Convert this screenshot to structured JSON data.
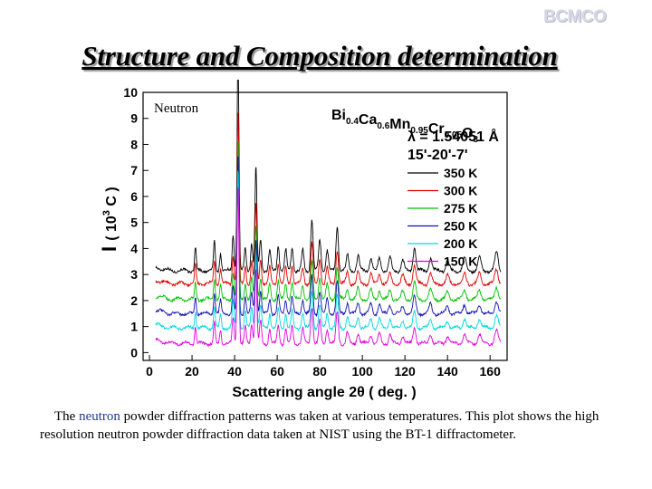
{
  "slide": {
    "logo": "BCMCO",
    "title": "Structure and Composition determination",
    "caption": {
      "part1": "The ",
      "highlight": "neutron",
      "part2": " powder diffraction patterns was taken at various temperatures. This plot shows the high resolution neutron powder diffraction data taken at NIST using the BT-1 diffractometer."
    }
  },
  "chart_data": {
    "type": "line",
    "title": "",
    "panel_label": "Neutron",
    "xlabel": "Scattering angle 2θ ( deg. )",
    "ylabel": "I",
    "ylabel_parts": [
      "I",
      "( 10",
      "3",
      " C )"
    ],
    "xlim": [
      -3,
      168
    ],
    "ylim": [
      -0.3,
      10
    ],
    "xticks": [
      0,
      20,
      40,
      60,
      80,
      100,
      120,
      140,
      160
    ],
    "yticks": [
      0,
      1,
      2,
      3,
      4,
      5,
      6,
      7,
      8,
      9,
      10
    ],
    "compound": {
      "parts": [
        {
          "t": "Bi",
          "sub": "0.4"
        },
        {
          "t": "Ca",
          "sub": "0.6"
        },
        {
          "t": "Mn",
          "sub": "0.95"
        },
        {
          "t": "Cr",
          "sub": "0.05"
        },
        {
          "t": "O",
          "sub": "3"
        }
      ]
    },
    "wavelength": "λ = 1.54051 Å",
    "collimation": "15'-20'-7'",
    "x_start": 3,
    "x_end": 165,
    "series": [
      {
        "name": "350 K",
        "color": "#000000",
        "offset": 2.8
      },
      {
        "name": "300 K",
        "color": "#e00000",
        "offset": 2.3
      },
      {
        "name": "275 K",
        "color": "#00c000",
        "offset": 1.7
      },
      {
        "name": "250 K",
        "color": "#1010b0",
        "offset": 1.15
      },
      {
        "name": "200 K",
        "color": "#00d8e0",
        "offset": 0.6
      },
      {
        "name": "150 K",
        "color": "#e000e0",
        "offset": 0.0
      }
    ],
    "peaks": [
      {
        "x": 21.6,
        "h": 0.9
      },
      {
        "x": 30.5,
        "h": 1.1
      },
      {
        "x": 33.4,
        "h": 0.7
      },
      {
        "x": 39.3,
        "h": 1.4
      },
      {
        "x": 41.6,
        "h": 8.6
      },
      {
        "x": 45.0,
        "h": 0.9
      },
      {
        "x": 48.0,
        "h": 1.1
      },
      {
        "x": 50.0,
        "h": 4.0
      },
      {
        "x": 52.2,
        "h": 1.2
      },
      {
        "x": 56.5,
        "h": 0.8
      },
      {
        "x": 60.5,
        "h": 1.0
      },
      {
        "x": 64.0,
        "h": 0.8
      },
      {
        "x": 67.0,
        "h": 0.9
      },
      {
        "x": 72.0,
        "h": 0.8
      },
      {
        "x": 76.3,
        "h": 2.0
      },
      {
        "x": 80.0,
        "h": 1.2
      },
      {
        "x": 83.5,
        "h": 0.8
      },
      {
        "x": 88.2,
        "h": 1.7
      },
      {
        "x": 93.0,
        "h": 0.6
      },
      {
        "x": 98.0,
        "h": 0.6
      },
      {
        "x": 104.0,
        "h": 0.5
      },
      {
        "x": 108.0,
        "h": 0.5
      },
      {
        "x": 113.0,
        "h": 0.5
      },
      {
        "x": 119.0,
        "h": 0.4
      },
      {
        "x": 124.5,
        "h": 0.9
      },
      {
        "x": 132.0,
        "h": 0.5
      },
      {
        "x": 140.0,
        "h": 0.4
      },
      {
        "x": 148.0,
        "h": 0.5
      },
      {
        "x": 155.0,
        "h": 0.5
      },
      {
        "x": 163.0,
        "h": 0.7
      }
    ],
    "legend_position": "top-right"
  }
}
